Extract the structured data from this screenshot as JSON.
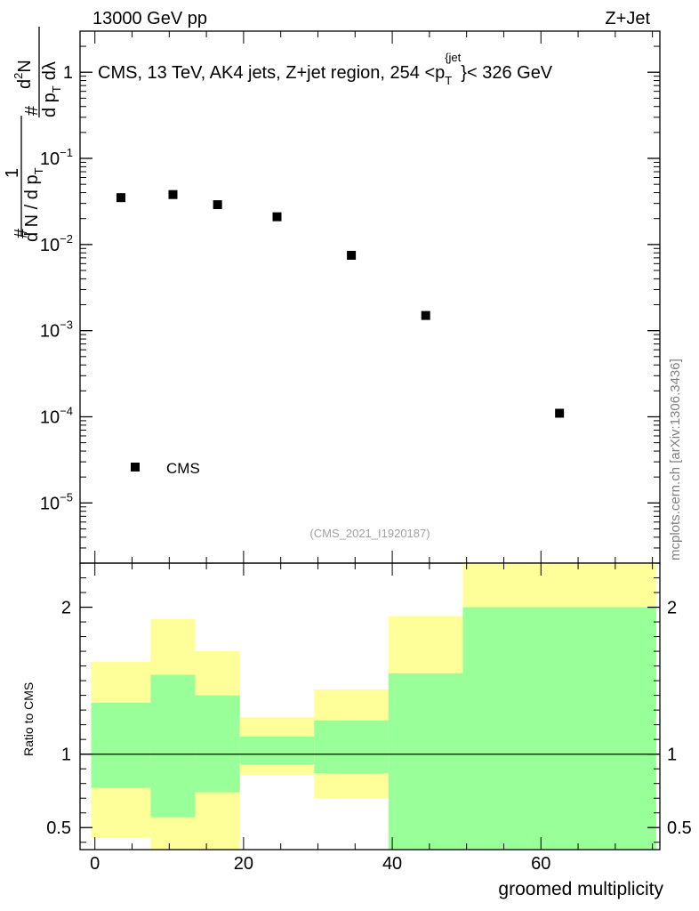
{
  "header": {
    "left": "13000 GeV pp",
    "right": "Z+Jet"
  },
  "watermark": "mcplots.cern.ch [arXiv:1306.3436]",
  "analysis_id": "(CMS_2021_I1920187)",
  "chart_data": [
    {
      "type": "scatter",
      "panel": "main",
      "title_main": "CMS, 13 TeV, AK4 jets, Z+jet region, 254 <p",
      "title_sub": "T",
      "title_sup": "{jet",
      "title_sup_end": "}",
      "title_tail": "< 326 GeV",
      "ylabel_hash": "#",
      "ylabel_one": "1",
      "ylabel_den_top": "d N / d p",
      "ylabel_den_sub": "T",
      "ylabel_num_hash": "#",
      "ylabel_num": "d",
      "ylabel_num_sup": "2",
      "ylabel_num_n": "N",
      "ylabel_frac_bot": "d p",
      "ylabel_frac_bot_sub": "T",
      "ylabel_frac_bot_tail": "dλ",
      "yscale": "log",
      "ylim": [
        2e-06,
        3.0
      ],
      "xlim": [
        -2,
        76
      ],
      "y_ticks": [
        {
          "value": 1,
          "label": "1"
        },
        {
          "value": 0.1,
          "base": "10",
          "exp": "−1"
        },
        {
          "value": 0.01,
          "base": "10",
          "exp": "−2"
        },
        {
          "value": 0.001,
          "base": "10",
          "exp": "−3"
        },
        {
          "value": 0.0001,
          "base": "10",
          "exp": "−4"
        },
        {
          "value": 1e-05,
          "base": "10",
          "exp": "−5"
        }
      ],
      "series": [
        {
          "name": "CMS",
          "x": [
            3.5,
            10.5,
            16.5,
            24.5,
            34.5,
            44.5,
            62.5
          ],
          "y": [
            0.035,
            0.038,
            0.029,
            0.021,
            0.0075,
            0.0015,
            0.00011
          ]
        }
      ],
      "legend": {
        "label": "CMS",
        "placement": "bottom-left"
      }
    },
    {
      "type": "area",
      "panel": "ratio",
      "ylabel": "Ratio to CMS",
      "xlabel": "groomed multiplicity",
      "ylim": [
        0.35,
        2.3
      ],
      "xlim": [
        -2,
        76
      ],
      "x_ticks": [
        0,
        20,
        40,
        60
      ],
      "y_ticks": [
        {
          "value": 0.5,
          "label": "0.5"
        },
        {
          "value": 1,
          "label": "1"
        },
        {
          "value": 2,
          "label": "2"
        }
      ],
      "reference_line": 1,
      "bins": [
        {
          "x0": -0.5,
          "x1": 7.5,
          "yellow": [
            0.43,
            1.63
          ],
          "green": [
            0.77,
            1.35
          ]
        },
        {
          "x0": 7.5,
          "x1": 13.5,
          "yellow": [
            0.35,
            1.92
          ],
          "green": [
            0.57,
            1.54
          ]
        },
        {
          "x0": 13.5,
          "x1": 19.5,
          "yellow": [
            0.35,
            1.7
          ],
          "green": [
            0.74,
            1.4
          ]
        },
        {
          "x0": 19.5,
          "x1": 29.5,
          "yellow": [
            0.86,
            1.25
          ],
          "green": [
            0.93,
            1.12
          ]
        },
        {
          "x0": 29.5,
          "x1": 39.5,
          "yellow": [
            0.7,
            1.44
          ],
          "green": [
            0.87,
            1.23
          ]
        },
        {
          "x0": 39.5,
          "x1": 49.5,
          "yellow": [
            0.55,
            1.94
          ],
          "green": [
            0.35,
            1.55
          ]
        },
        {
          "x0": 49.5,
          "x1": 75.5,
          "yellow": [
            0.35,
            2.3
          ],
          "green": [
            0.35,
            2.0
          ]
        }
      ],
      "colors": {
        "yellow": "#ffff99",
        "green": "#99ff99"
      }
    }
  ]
}
